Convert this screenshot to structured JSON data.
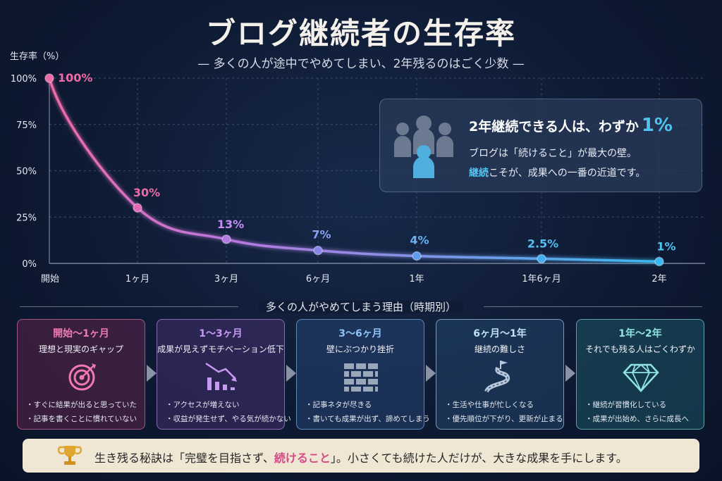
{
  "title": "ブログ継続者の生存率",
  "subtitle": "— 多くの人が途中でやめてしまい、2年残るのはごく少数 —",
  "colors": {
    "line_start": "#f06aa8",
    "line_mid": "#a070e8",
    "line_end": "#3ab8f0",
    "accent": "#4fc3f0",
    "highlight": "#d64a86"
  },
  "chart_data": {
    "type": "line",
    "ylabel": "生存率（%）",
    "ylim": [
      0,
      100
    ],
    "yticks": [
      "0%",
      "25%",
      "50%",
      "75%",
      "100%"
    ],
    "categories": [
      "開始",
      "1ヶ月",
      "3ヶ月",
      "6ヶ月",
      "1年",
      "1年6ヶ月",
      "2年"
    ],
    "values": [
      100,
      30,
      13,
      7,
      4,
      2.5,
      1
    ],
    "data_labels": [
      "100%",
      "30%",
      "13%",
      "7%",
      "4%",
      "2.5%",
      "1%"
    ],
    "grid": true
  },
  "callout": {
    "icon": "people-icon",
    "line1": "2年継続できる人は、わずか",
    "line1_value": "1%",
    "line2": "ブログは「続けること」が最大の壁。",
    "line3_highlight": "継続",
    "line3_rest": "こそが、成果への一番の近道です。"
  },
  "reasons": {
    "title": "多くの人がやめてしまう理由（時期別）",
    "cards": [
      {
        "period": "開始〜1ヶ月",
        "heading": "理想と現実のギャップ",
        "icon": "target-icon",
        "color": "#f07ab0",
        "bg": "rgba(110, 40, 80, 0.45)",
        "bullets": [
          "すぐに結果が出ると思っていた",
          "記事を書くことに慣れていない"
        ]
      },
      {
        "period": "1〜3ヶ月",
        "heading": "成果が見えずモチベーション低下",
        "icon": "chart-down-icon",
        "color": "#c69af0",
        "bg": "rgba(80, 50, 120, 0.45)",
        "bullets": [
          "アクセスが増えない",
          "収益が発生せず、やる気が続かない"
        ]
      },
      {
        "period": "3〜6ヶ月",
        "heading": "壁にぶつかり挫折",
        "icon": "brick-wall-icon",
        "color": "#8ec4f5",
        "bg": "rgba(40, 70, 120, 0.5)",
        "bullets": [
          "記事ネタが尽きる",
          "書いても成果が出ず、諦めてしまう"
        ]
      },
      {
        "period": "6ヶ月〜1年",
        "heading": "継続の難しさ",
        "icon": "winding-road-icon",
        "color": "#bfe0f5",
        "bg": "rgba(40, 80, 120, 0.45)",
        "bullets": [
          "生活や仕事が忙しくなる",
          "優先順位が下がり、更新が止まる"
        ]
      },
      {
        "period": "1年〜2年",
        "heading": "それでも残る人はごくわずか",
        "icon": "diamond-icon",
        "color": "#8fe3e3",
        "bg": "rgba(30, 90, 105, 0.5)",
        "bullets": [
          "継続が習慣化している",
          "成果が出始め、さらに成長へ"
        ]
      }
    ]
  },
  "footer": {
    "icon": "trophy-icon",
    "text_before": "生き残る秘訣は「完璧を目指さず、",
    "text_highlight": "続けること",
    "text_after": "」。小さくても続けた人だけが、大きな成果を手にします。"
  }
}
